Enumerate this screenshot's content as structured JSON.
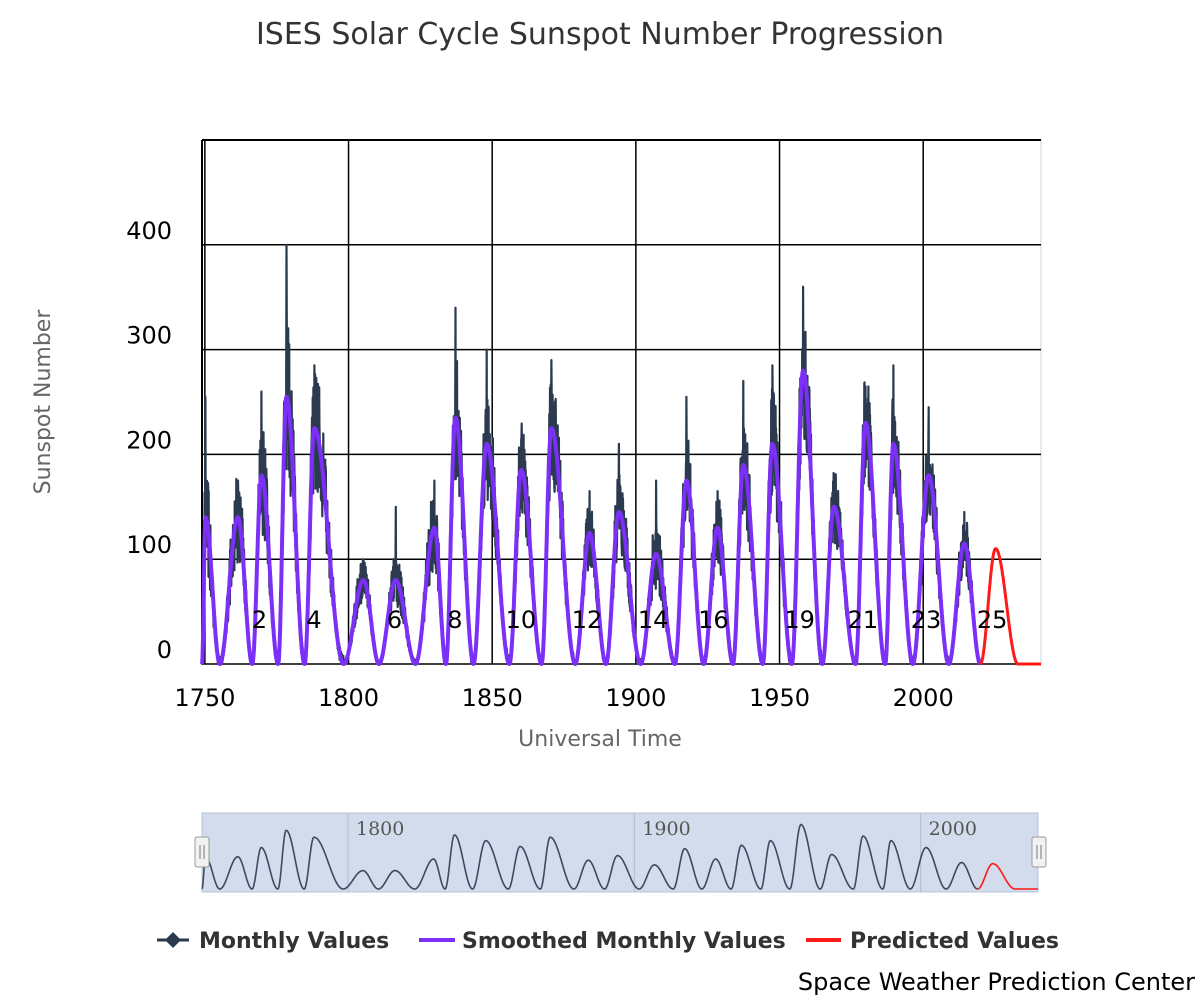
{
  "chart_data": {
    "type": "line",
    "title": "ISES Solar Cycle Sunspot Number Progression",
    "xlabel": "Universal Time",
    "ylabel": "Sunspot Number",
    "xlim": [
      1749,
      2041
    ],
    "ylim": [
      0,
      500
    ],
    "x_ticks": [
      1750,
      1800,
      1850,
      1900,
      1950,
      2000
    ],
    "y_ticks": [
      0,
      100,
      200,
      300,
      400
    ],
    "grid": true,
    "legend_position": "bottom",
    "cycle_labels": [
      {
        "label": "2",
        "x": 1769
      },
      {
        "label": "4",
        "x": 1788
      },
      {
        "label": "6",
        "x": 1816
      },
      {
        "label": "8",
        "x": 1837
      },
      {
        "label": "10",
        "x": 1860
      },
      {
        "label": "12",
        "x": 1883
      },
      {
        "label": "14",
        "x": 1906
      },
      {
        "label": "16",
        "x": 1927
      },
      {
        "label": "19",
        "x": 1957
      },
      {
        "label": "21",
        "x": 1979
      },
      {
        "label": "23",
        "x": 2001
      },
      {
        "label": "25",
        "x": 2024
      }
    ],
    "cycles": [
      {
        "start": 1749.0,
        "max": 1750.2,
        "end": 1755.2,
        "smoothed_peak": 140,
        "monthly_peak": 255,
        "noise": 50
      },
      {
        "start": 1755.2,
        "max": 1761.5,
        "end": 1766.5,
        "smoothed_peak": 140,
        "monthly_peak": 175,
        "noise": 45
      },
      {
        "start": 1766.5,
        "max": 1769.7,
        "end": 1775.5,
        "smoothed_peak": 180,
        "monthly_peak": 260,
        "noise": 55
      },
      {
        "start": 1775.5,
        "max": 1778.4,
        "end": 1784.7,
        "smoothed_peak": 255,
        "monthly_peak": 400,
        "noise": 75
      },
      {
        "start": 1784.7,
        "max": 1788.1,
        "end": 1798.3,
        "smoothed_peak": 225,
        "monthly_peak": 285,
        "noise": 60
      },
      {
        "start": 1798.3,
        "max": 1805.2,
        "end": 1810.6,
        "smoothed_peak": 80,
        "monthly_peak": 100,
        "noise": 22
      },
      {
        "start": 1810.6,
        "max": 1816.4,
        "end": 1823.3,
        "smoothed_peak": 80,
        "monthly_peak": 150,
        "noise": 25
      },
      {
        "start": 1823.3,
        "max": 1829.9,
        "end": 1833.9,
        "smoothed_peak": 130,
        "monthly_peak": 175,
        "noise": 40
      },
      {
        "start": 1833.9,
        "max": 1837.2,
        "end": 1843.5,
        "smoothed_peak": 235,
        "monthly_peak": 340,
        "noise": 60
      },
      {
        "start": 1843.5,
        "max": 1848.1,
        "end": 1856.0,
        "smoothed_peak": 210,
        "monthly_peak": 300,
        "noise": 55
      },
      {
        "start": 1856.0,
        "max": 1860.1,
        "end": 1867.2,
        "smoothed_peak": 185,
        "monthly_peak": 215,
        "noise": 45
      },
      {
        "start": 1867.2,
        "max": 1870.6,
        "end": 1878.9,
        "smoothed_peak": 225,
        "monthly_peak": 290,
        "noise": 55
      },
      {
        "start": 1878.9,
        "max": 1883.9,
        "end": 1889.6,
        "smoothed_peak": 125,
        "monthly_peak": 165,
        "noise": 35
      },
      {
        "start": 1889.6,
        "max": 1894.1,
        "end": 1901.7,
        "smoothed_peak": 145,
        "monthly_peak": 210,
        "noise": 40
      },
      {
        "start": 1901.7,
        "max": 1907.0,
        "end": 1913.6,
        "smoothed_peak": 105,
        "monthly_peak": 175,
        "noise": 35
      },
      {
        "start": 1913.6,
        "max": 1917.6,
        "end": 1923.6,
        "smoothed_peak": 175,
        "monthly_peak": 255,
        "noise": 45
      },
      {
        "start": 1923.6,
        "max": 1928.4,
        "end": 1933.8,
        "smoothed_peak": 130,
        "monthly_peak": 165,
        "noise": 35
      },
      {
        "start": 1933.8,
        "max": 1937.4,
        "end": 1944.2,
        "smoothed_peak": 190,
        "monthly_peak": 270,
        "noise": 50
      },
      {
        "start": 1944.2,
        "max": 1947.5,
        "end": 1954.3,
        "smoothed_peak": 210,
        "monthly_peak": 285,
        "noise": 55
      },
      {
        "start": 1954.3,
        "max": 1958.2,
        "end": 1964.9,
        "smoothed_peak": 280,
        "monthly_peak": 360,
        "noise": 65
      },
      {
        "start": 1964.9,
        "max": 1968.9,
        "end": 1976.5,
        "smoothed_peak": 150,
        "monthly_peak": 180,
        "noise": 35
      },
      {
        "start": 1976.5,
        "max": 1979.9,
        "end": 1986.8,
        "smoothed_peak": 230,
        "monthly_peak": 265,
        "noise": 50
      },
      {
        "start": 1986.8,
        "max": 1989.6,
        "end": 1996.4,
        "smoothed_peak": 210,
        "monthly_peak": 285,
        "noise": 50
      },
      {
        "start": 1996.4,
        "max": 2001.9,
        "end": 2008.9,
        "smoothed_peak": 180,
        "monthly_peak": 245,
        "noise": 45
      },
      {
        "start": 2008.9,
        "max": 2014.3,
        "end": 2019.9,
        "smoothed_peak": 115,
        "monthly_peak": 145,
        "noise": 30
      }
    ],
    "predicted": {
      "start": 2019.9,
      "max": 2025.2,
      "end": 2033.0,
      "peak": 110,
      "xmax": 2041
    },
    "series": [
      {
        "name": "Monthly Values",
        "color": "#2b3a4f",
        "marker": "diamond"
      },
      {
        "name": "Smoothed Monthly Values",
        "color": "#7b2ff7"
      },
      {
        "name": "Predicted Values",
        "color": "#ff1a1a"
      }
    ],
    "navigator": {
      "labels": [
        "1800",
        "1900",
        "2000"
      ],
      "x": [
        1800,
        1900,
        2000
      ]
    },
    "credit": "Space Weather Prediction Center"
  }
}
